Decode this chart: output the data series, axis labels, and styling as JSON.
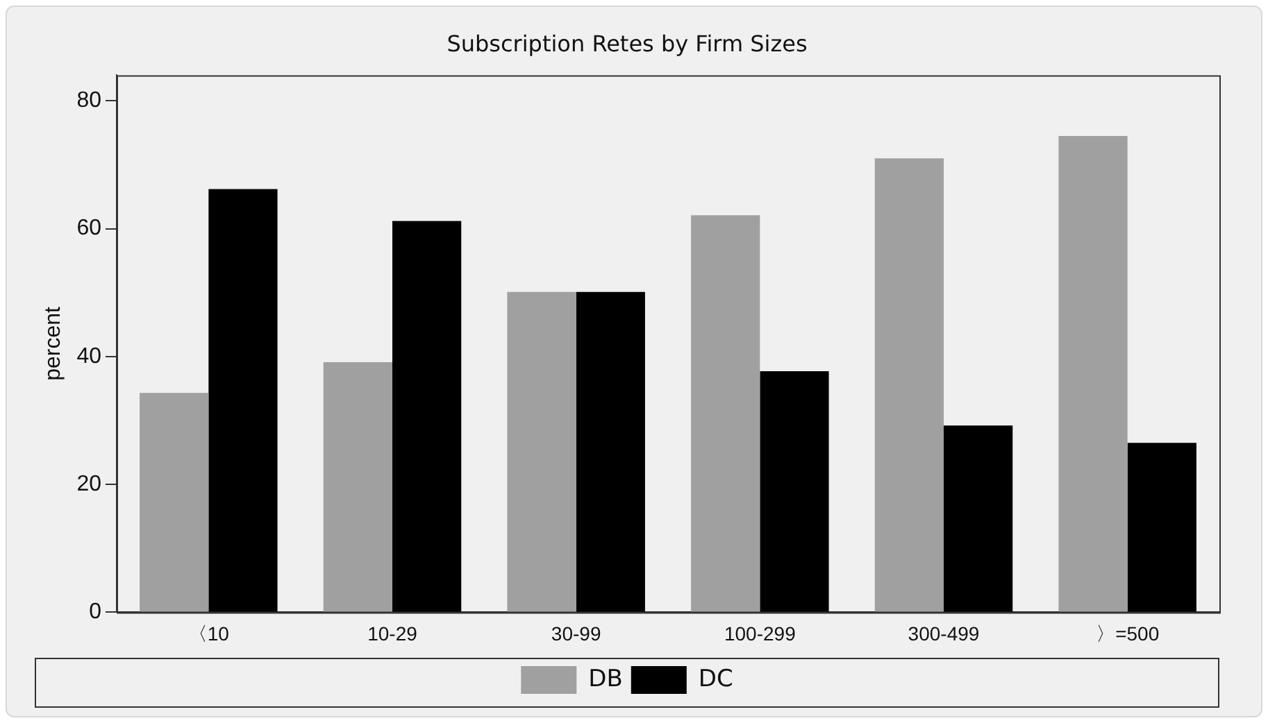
{
  "chart_data": {
    "type": "bar",
    "title": "Subscription Retes by Firm Sizes",
    "ylabel": "percent",
    "categories": [
      "〈10",
      "10-29",
      "30-99",
      "100-299",
      "300-499",
      "〉=500"
    ],
    "series": [
      {
        "name": "DB",
        "color": "#a0a0a0",
        "values": [
          34.3,
          39.1,
          50.1,
          62.1,
          71.0,
          74.5
        ]
      },
      {
        "name": "DC",
        "color": "#000000",
        "values": [
          66.2,
          61.2,
          50.1,
          37.7,
          29.2,
          26.5
        ]
      }
    ],
    "ylim": [
      0,
      84
    ],
    "yticks": [
      0,
      20,
      40,
      60,
      80
    ],
    "grid": false,
    "legend": "bottom"
  }
}
